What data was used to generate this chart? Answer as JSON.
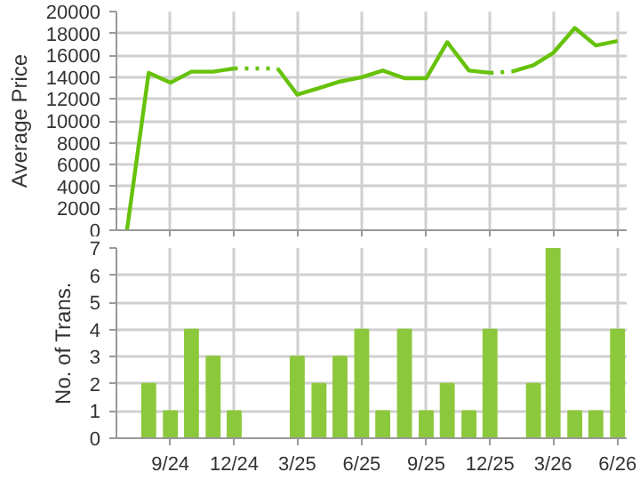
{
  "chart_data": [
    {
      "type": "line",
      "ylabel": "Average Price",
      "xlim": [
        "2024-06-16",
        "2026-06-14"
      ],
      "ylim": [
        0,
        20000
      ],
      "xticks": [
        {
          "value": "2024-09",
          "label": null
        },
        {
          "value": "2024-12",
          "label": null
        },
        {
          "value": "2025-03",
          "label": null
        },
        {
          "value": "2025-06",
          "label": null
        },
        {
          "value": "2025-09",
          "label": null
        },
        {
          "value": "2025-12",
          "label": null
        },
        {
          "value": "2026-03",
          "label": null
        },
        {
          "value": "2026-06",
          "label": null
        }
      ],
      "yticks": [
        0,
        2000,
        4000,
        6000,
        8000,
        10000,
        12000,
        14000,
        16000,
        18000,
        20000
      ],
      "tick_labels": "y",
      "grid": true,
      "series": [
        {
          "color": "#66c20a",
          "line_style": "solid",
          "x": [
            "2024-07",
            "2024-08",
            "2024-09",
            "2024-10",
            "2024-11",
            "2024-12"
          ],
          "values": [
            0,
            14400,
            13500,
            14500,
            14500,
            14800
          ]
        },
        {
          "color": "#66c20a",
          "line_style": "dotted",
          "x": [
            "2024-12",
            "2025-02"
          ],
          "values": [
            14800,
            14800
          ]
        },
        {
          "color": "#66c20a",
          "line_style": "solid",
          "x": [
            "2025-02",
            "2025-03",
            "2025-04",
            "2025-05",
            "2025-06",
            "2025-07",
            "2025-08",
            "2025-09",
            "2025-10",
            "2025-11",
            "2025-12"
          ],
          "values": [
            14800,
            12400,
            13000,
            13600,
            14000,
            14600,
            13900,
            13900,
            17200,
            14600,
            14400
          ]
        },
        {
          "color": "#66c20a",
          "line_style": "dotted",
          "x": [
            "2025-12",
            "2026-01"
          ],
          "values": [
            14400,
            14500
          ]
        },
        {
          "color": "#66c20a",
          "line_style": "solid",
          "x": [
            "2026-01",
            "2026-02",
            "2026-03",
            "2026-04",
            "2026-05",
            "2026-06"
          ],
          "values": [
            14500,
            15100,
            16200,
            18500,
            16900,
            17300
          ]
        }
      ]
    },
    {
      "type": "bar",
      "ylabel": "No. of Trans.",
      "xlim": [
        "2024-06-16",
        "2026-06-14"
      ],
      "ylim": [
        0,
        7
      ],
      "xticks": [
        {
          "value": "2024-09",
          "label": "9/24"
        },
        {
          "value": "2024-12",
          "label": "12/24"
        },
        {
          "value": "2025-03",
          "label": "3/25"
        },
        {
          "value": "2025-06",
          "label": "6/25"
        },
        {
          "value": "2025-09",
          "label": "9/25"
        },
        {
          "value": "2025-12",
          "label": "12/25"
        },
        {
          "value": "2026-03",
          "label": "3/26"
        },
        {
          "value": "2026-06",
          "label": "6/26"
        }
      ],
      "yticks": [
        0,
        1,
        2,
        3,
        4,
        5,
        6,
        7
      ],
      "grid": true,
      "x": [
        "2024-08",
        "2024-09",
        "2024-10",
        "2024-11",
        "2024-12",
        "2025-01",
        "2025-02",
        "2025-03",
        "2025-04",
        "2025-05",
        "2025-06",
        "2025-07",
        "2025-08",
        "2025-09",
        "2025-10",
        "2025-11",
        "2025-12",
        "2026-01",
        "2026-02",
        "2026-03",
        "2026-04",
        "2026-05",
        "2026-06"
      ],
      "series": [
        {
          "color": "#8cc83c",
          "values": [
            2,
            1,
            4,
            3,
            1,
            0,
            0,
            3,
            2,
            3,
            4,
            1,
            4,
            1,
            2,
            1,
            4,
            0,
            2,
            7,
            1,
            1,
            4
          ]
        }
      ]
    }
  ]
}
